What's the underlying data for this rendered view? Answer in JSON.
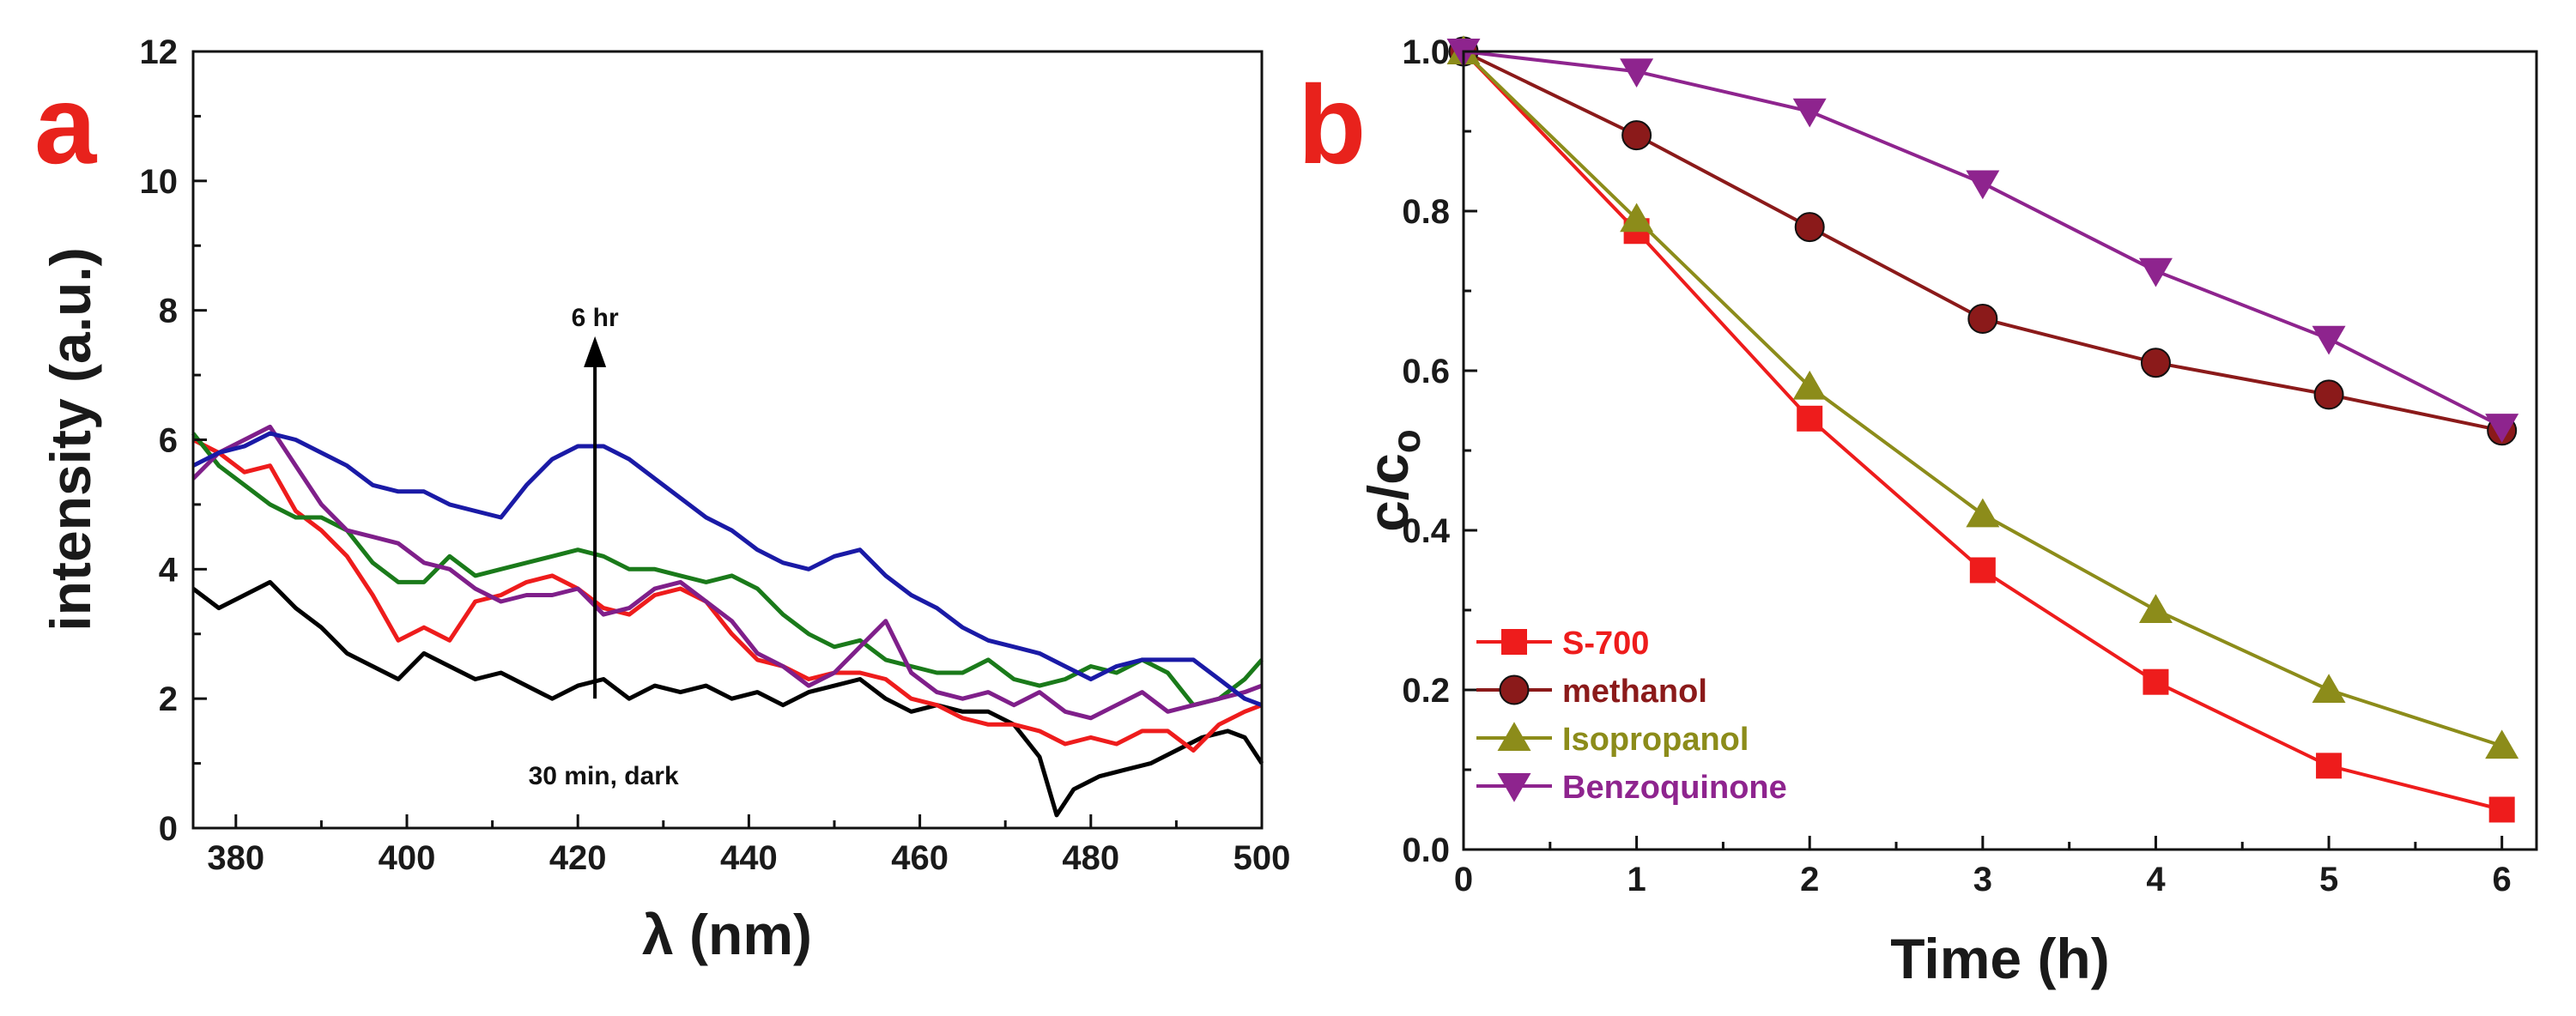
{
  "chart_data": [
    {
      "panel_label": "a",
      "type": "line",
      "xlabel": "λ (nm)",
      "ylabel": "intensity (a.u.)",
      "xlim": [
        375,
        500
      ],
      "ylim": [
        0,
        12
      ],
      "xticks": [
        380,
        400,
        420,
        440,
        460,
        480,
        500
      ],
      "yticks": [
        0,
        2,
        4,
        6,
        8,
        10,
        12
      ],
      "annotations": {
        "arrow_top": "6 hr",
        "arrow_bottom": "30 min, dark",
        "arrow_x": 422,
        "arrow_y_from": 2.0,
        "arrow_y_to": 7.6
      },
      "series": [
        {
          "name": "30 min, dark",
          "color": "#000000",
          "x": [
            375,
            378,
            381,
            384,
            387,
            390,
            393,
            396,
            399,
            402,
            405,
            408,
            411,
            414,
            417,
            420,
            423,
            426,
            429,
            432,
            435,
            438,
            441,
            444,
            447,
            450,
            453,
            456,
            459,
            462,
            465,
            468,
            471,
            474,
            476,
            478,
            481,
            484,
            487,
            490,
            493,
            496,
            498,
            500
          ],
          "y": [
            3.7,
            3.4,
            3.6,
            3.8,
            3.4,
            3.1,
            2.7,
            2.5,
            2.3,
            2.7,
            2.5,
            2.3,
            2.4,
            2.2,
            2.0,
            2.2,
            2.3,
            2.0,
            2.2,
            2.1,
            2.2,
            2.0,
            2.1,
            1.9,
            2.1,
            2.2,
            2.3,
            2.0,
            1.8,
            1.9,
            1.8,
            1.8,
            1.6,
            1.1,
            0.2,
            0.6,
            0.8,
            0.9,
            1.0,
            1.2,
            1.4,
            1.5,
            1.4,
            1.0
          ]
        },
        {
          "name": "red",
          "color": "#ee1c1c",
          "x": [
            375,
            378,
            381,
            384,
            387,
            390,
            393,
            396,
            399,
            402,
            405,
            408,
            411,
            414,
            417,
            420,
            423,
            426,
            429,
            432,
            435,
            438,
            441,
            444,
            447,
            450,
            453,
            456,
            459,
            462,
            465,
            468,
            471,
            474,
            477,
            480,
            483,
            486,
            489,
            492,
            495,
            498,
            500
          ],
          "y": [
            6.0,
            5.8,
            5.5,
            5.6,
            4.9,
            4.6,
            4.2,
            3.6,
            2.9,
            3.1,
            2.9,
            3.5,
            3.6,
            3.8,
            3.9,
            3.7,
            3.4,
            3.3,
            3.6,
            3.7,
            3.5,
            3.0,
            2.6,
            2.5,
            2.3,
            2.4,
            2.4,
            2.3,
            2.0,
            1.9,
            1.7,
            1.6,
            1.6,
            1.5,
            1.3,
            1.4,
            1.3,
            1.5,
            1.5,
            1.2,
            1.6,
            1.8,
            1.9
          ]
        },
        {
          "name": "green",
          "color": "#1a7a1a",
          "x": [
            375,
            378,
            381,
            384,
            387,
            390,
            393,
            396,
            399,
            402,
            405,
            408,
            411,
            414,
            417,
            420,
            423,
            426,
            429,
            432,
            435,
            438,
            441,
            444,
            447,
            450,
            453,
            456,
            459,
            462,
            465,
            468,
            471,
            474,
            477,
            480,
            483,
            486,
            489,
            492,
            495,
            498,
            500
          ],
          "y": [
            6.1,
            5.6,
            5.3,
            5.0,
            4.8,
            4.8,
            4.6,
            4.1,
            3.8,
            3.8,
            4.2,
            3.9,
            4.0,
            4.1,
            4.2,
            4.3,
            4.2,
            4.0,
            4.0,
            3.9,
            3.8,
            3.9,
            3.7,
            3.3,
            3.0,
            2.8,
            2.9,
            2.6,
            2.5,
            2.4,
            2.4,
            2.6,
            2.3,
            2.2,
            2.3,
            2.5,
            2.4,
            2.6,
            2.4,
            1.9,
            2.0,
            2.3,
            2.6
          ]
        },
        {
          "name": "purple",
          "color": "#7f1f8a",
          "x": [
            375,
            378,
            381,
            384,
            387,
            390,
            393,
            396,
            399,
            402,
            405,
            408,
            411,
            414,
            417,
            420,
            423,
            426,
            429,
            432,
            435,
            438,
            441,
            444,
            447,
            450,
            453,
            456,
            459,
            462,
            465,
            468,
            471,
            474,
            477,
            480,
            483,
            486,
            489,
            492,
            495,
            498,
            500
          ],
          "y": [
            5.4,
            5.8,
            6.0,
            6.2,
            5.6,
            5.0,
            4.6,
            4.5,
            4.4,
            4.1,
            4.0,
            3.7,
            3.5,
            3.6,
            3.6,
            3.7,
            3.3,
            3.4,
            3.7,
            3.8,
            3.5,
            3.2,
            2.7,
            2.5,
            2.2,
            2.4,
            2.8,
            3.2,
            2.4,
            2.1,
            2.0,
            2.1,
            1.9,
            2.1,
            1.8,
            1.7,
            1.9,
            2.1,
            1.8,
            1.9,
            2.0,
            2.1,
            2.2
          ]
        },
        {
          "name": "6 hr",
          "color": "#1a1aa6",
          "x": [
            375,
            378,
            381,
            384,
            387,
            390,
            393,
            396,
            399,
            402,
            405,
            408,
            411,
            414,
            417,
            420,
            423,
            426,
            429,
            432,
            435,
            438,
            441,
            444,
            447,
            450,
            453,
            456,
            459,
            462,
            465,
            468,
            471,
            474,
            477,
            480,
            483,
            486,
            489,
            492,
            495,
            498,
            500
          ],
          "y": [
            5.6,
            5.8,
            5.9,
            6.1,
            6.0,
            5.8,
            5.6,
            5.3,
            5.2,
            5.2,
            5.0,
            4.9,
            4.8,
            5.3,
            5.7,
            5.9,
            5.9,
            5.7,
            5.4,
            5.1,
            4.8,
            4.6,
            4.3,
            4.1,
            4.0,
            4.2,
            4.3,
            3.9,
            3.6,
            3.4,
            3.1,
            2.9,
            2.8,
            2.7,
            2.5,
            2.3,
            2.5,
            2.6,
            2.6,
            2.6,
            2.3,
            2.0,
            1.9
          ]
        }
      ]
    },
    {
      "panel_label": "b",
      "type": "line",
      "xlabel": "Time (h)",
      "ylabel": "c/c",
      "ylabel_subscript": "o",
      "xlim": [
        0,
        6.2
      ],
      "ylim": [
        0,
        1.0
      ],
      "xticks": [
        0,
        1,
        2,
        3,
        4,
        5,
        6
      ],
      "yticks": [
        0.0,
        0.2,
        0.4,
        0.6,
        0.8,
        1.0
      ],
      "ytick_labels": [
        "0.0",
        "0.2",
        "0.4",
        "0.6",
        "0.8",
        "1.0"
      ],
      "legend": "bottom-left",
      "x": [
        0,
        1,
        2,
        3,
        4,
        5,
        6
      ],
      "series": [
        {
          "name": "S-700",
          "color": "#ee1c1c",
          "marker": "square",
          "values": [
            1.0,
            0.775,
            0.54,
            0.35,
            0.21,
            0.105,
            0.05
          ]
        },
        {
          "name": "methanol",
          "color": "#8b1a1a",
          "marker": "circle",
          "values": [
            1.0,
            0.895,
            0.78,
            0.665,
            0.61,
            0.57,
            0.525
          ]
        },
        {
          "name": "Isopropanol",
          "color": "#8c8c1a",
          "marker": "triangle-up",
          "values": [
            1.0,
            0.79,
            0.58,
            0.42,
            0.3,
            0.2,
            0.13
          ]
        },
        {
          "name": "Benzoquinone",
          "color": "#8e248e",
          "marker": "triangle-down",
          "values": [
            1.0,
            0.975,
            0.925,
            0.835,
            0.725,
            0.64,
            0.53
          ]
        }
      ]
    }
  ],
  "panel_colors": {
    "letter": "#e8221c"
  }
}
